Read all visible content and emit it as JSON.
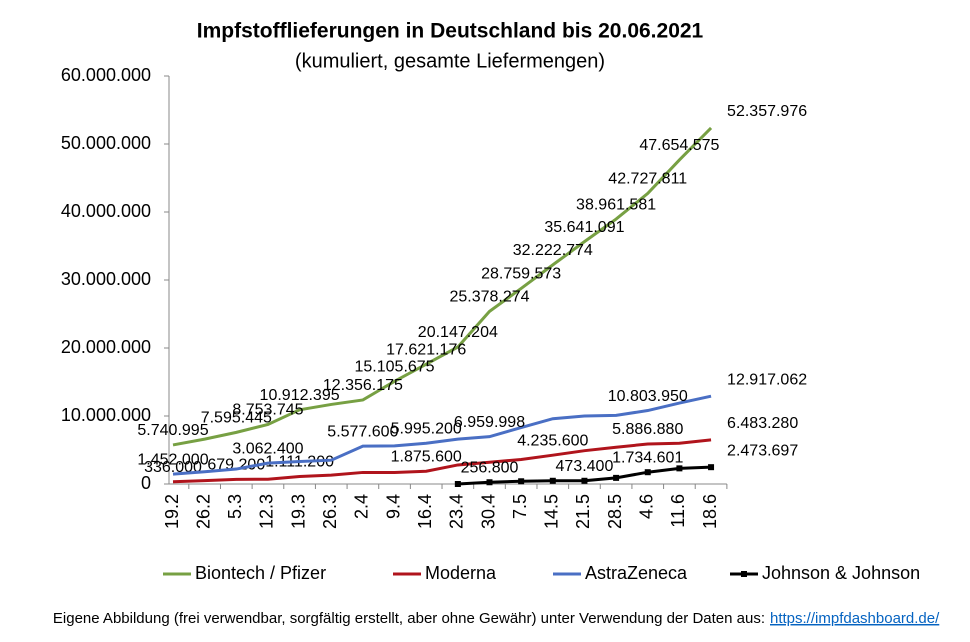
{
  "chart_data": {
    "type": "line",
    "title": "Impfstofflieferungen in Deutschland bis 20.06.2021",
    "subtitle": "(kumuliert, gesamte Liefermengen)",
    "categories": [
      "19.2",
      "26.2",
      "5.3",
      "12.3",
      "19.3",
      "26.3",
      "2.4",
      "9.4",
      "16.4",
      "23.4",
      "30.4",
      "7.5",
      "14.5",
      "21.5",
      "28.5",
      "4.6",
      "11.6",
      "18.6"
    ],
    "ylim": [
      0,
      60000000
    ],
    "yticks": [
      0,
      {
        "value": 10000000,
        "label": "10.000.000"
      },
      {
        "value": 20000000,
        "label": "20.000.000"
      },
      {
        "value": 30000000,
        "label": "30.000.000"
      },
      {
        "value": 40000000,
        "label": "40.000.000"
      },
      {
        "value": 50000000,
        "label": "50.000.000"
      },
      {
        "value": 60000000,
        "label": "60.000.000"
      }
    ],
    "grid": false,
    "legend": "bottom",
    "series": [
      {
        "name": "Biontech / Pfizer",
        "color": "#77a043",
        "values": [
          5740995,
          6600000,
          7595445,
          8753745,
          10912395,
          11700000,
          12356175,
          15105675,
          17621176,
          20147204,
          25378274,
          28759573,
          32222774,
          35641091,
          38961581,
          42727811,
          47654575,
          52357976
        ],
        "value_labels": [
          "5.740.995",
          null,
          "7.595.445",
          "8.753.745",
          "10.912.395",
          null,
          "12.356.175",
          "15.105.675",
          "17.621.176",
          "20.147.204",
          "25.378.274",
          "28.759.573",
          "32.222.774",
          "35.641.091",
          "38.961.581",
          "42.727.811",
          "47.654.575",
          "52.357.976"
        ]
      },
      {
        "name": "Moderna",
        "color": "#b0141c",
        "values": [
          336000,
          500000,
          679200,
          700000,
          1111200,
          1300000,
          1700000,
          1700000,
          1875600,
          2800000,
          3200000,
          3600000,
          4235600,
          4900000,
          5400000,
          5886880,
          6000000,
          6483280
        ],
        "value_labels": [
          "336.000",
          null,
          "679.200",
          null,
          "1.111.200",
          null,
          null,
          null,
          "1.875.600",
          null,
          null,
          null,
          "4.235.600",
          null,
          null,
          "5.886.880",
          null,
          "6.483.280"
        ]
      },
      {
        "name": "AstraZeneca",
        "color": "#4a6fc4",
        "values": [
          1452000,
          1800000,
          2200000,
          3062400,
          3300000,
          3500000,
          5577600,
          5600000,
          5995200,
          6600000,
          6959998,
          8300000,
          9600000,
          10000000,
          10100000,
          10803950,
          11900000,
          12917062
        ],
        "value_labels": [
          "1.452.000",
          null,
          null,
          "3.062.400",
          null,
          null,
          "5.577.600",
          null,
          "5.995.200",
          null,
          "6.959.998",
          null,
          null,
          null,
          null,
          "10.803.950",
          null,
          "12.917.062"
        ]
      },
      {
        "name": "Johnson & Johnson",
        "color": "#000000",
        "marker": "square",
        "values": [
          null,
          null,
          null,
          null,
          null,
          null,
          null,
          null,
          null,
          0,
          256800,
          400000,
          473400,
          473400,
          900000,
          1734601,
          2300000,
          2473697
        ],
        "value_labels": [
          null,
          null,
          null,
          null,
          null,
          null,
          null,
          null,
          null,
          null,
          "256.800",
          null,
          null,
          "473.400",
          null,
          "1.734.601",
          null,
          "2.473.697"
        ]
      }
    ],
    "source": "Eigene Abbildung (frei verwendbar, sorgfältig erstellt, aber ohne Gewähr) unter Verwendung der Daten aus:",
    "source_link": "https://impfdashboard.de/"
  }
}
